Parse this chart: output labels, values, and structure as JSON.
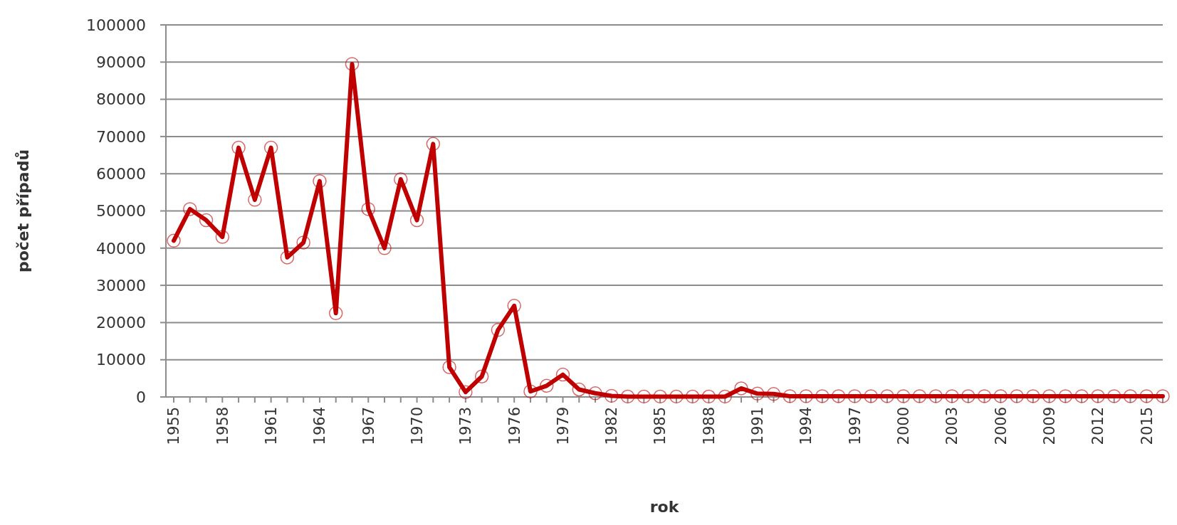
{
  "chart_data": {
    "type": "line",
    "xlabel": "rok",
    "ylabel": "počet případů",
    "categories": [
      "1955",
      null,
      null,
      "1958",
      null,
      null,
      "1961",
      null,
      null,
      "1964",
      null,
      null,
      "1967",
      null,
      null,
      "1970",
      null,
      null,
      "1973",
      null,
      null,
      "1976",
      null,
      null,
      "1979",
      null,
      null,
      "1982",
      null,
      null,
      "1985",
      null,
      null,
      "1988",
      null,
      null,
      "1991",
      null,
      null,
      "1994",
      null,
      null,
      "1997",
      null,
      null,
      "2000",
      null,
      null,
      "2003",
      null,
      null,
      "2006",
      null,
      null,
      "2009",
      null,
      null,
      "2012",
      null,
      null,
      "2015",
      null
    ],
    "series": [
      {
        "color": "#c00000",
        "values": [
          42000,
          50500,
          47500,
          43000,
          67000,
          53000,
          67000,
          37500,
          41500,
          58000,
          22500,
          89500,
          50500,
          40000,
          58500,
          47500,
          68000,
          8000,
          1300,
          5500,
          18000,
          24500,
          1500,
          3000,
          6000,
          2000,
          1000,
          300,
          100,
          100,
          100,
          100,
          100,
          100,
          100,
          2300,
          900,
          800,
          200,
          200,
          200,
          200,
          200,
          200,
          200,
          200,
          200,
          200,
          200,
          200,
          200,
          200,
          200,
          200,
          200,
          200,
          200,
          200,
          200,
          200,
          200,
          200
        ]
      }
    ],
    "ylim": [
      0,
      100000
    ],
    "yticks": [
      0,
      10000,
      20000,
      30000,
      40000,
      50000,
      60000,
      70000,
      80000,
      90000,
      100000
    ],
    "grid": "y",
    "marker": "circle",
    "line_style": "solid"
  }
}
